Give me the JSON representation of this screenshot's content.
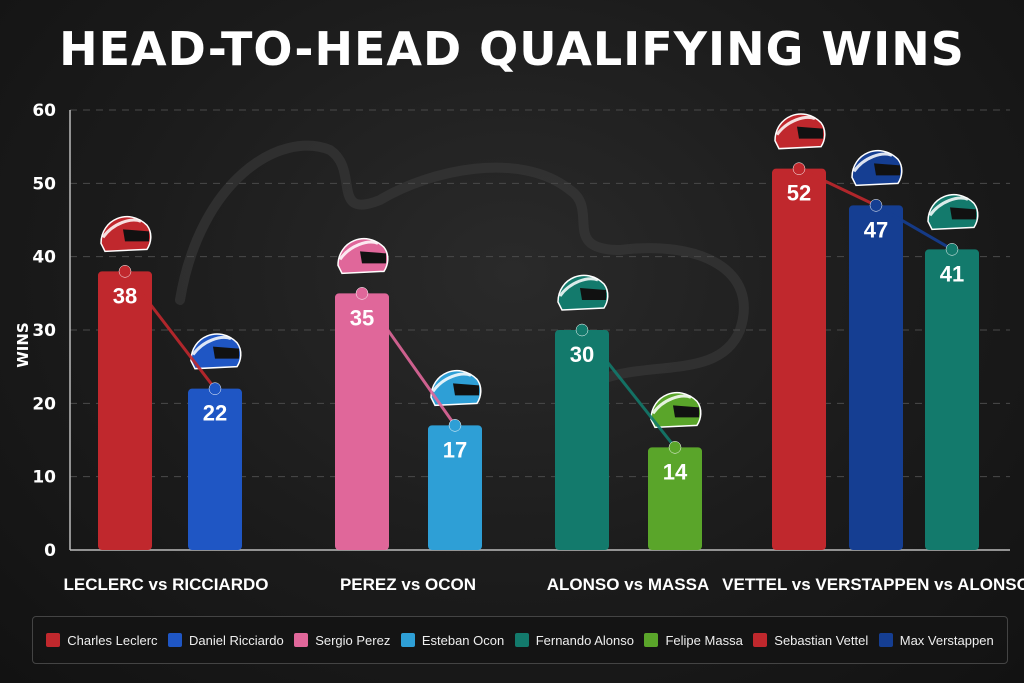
{
  "chart_data": {
    "type": "bar",
    "title": "HEAD-TO-HEAD QUALIFYING WINS",
    "ylabel": "WINS",
    "xlabel": "",
    "ylim": [
      0,
      60
    ],
    "yticks": [
      0,
      10,
      20,
      30,
      40,
      50,
      60
    ],
    "grid": true,
    "legend_position": "bottom",
    "groups": [
      {
        "label": "LECLERC vs RICCIARDO",
        "bars": [
          {
            "driver": "Charles Leclerc",
            "value": 38
          },
          {
            "driver": "Daniel Ricciardo",
            "value": 22
          }
        ]
      },
      {
        "label": "PEREZ vs OCON",
        "bars": [
          {
            "driver": "Sergio Perez",
            "value": 35
          },
          {
            "driver": "Esteban Ocon",
            "value": 17
          }
        ]
      },
      {
        "label": "ALONSO vs MASSA",
        "bars": [
          {
            "driver": "Fernando Alonso",
            "value": 30
          },
          {
            "driver": "Felipe Massa",
            "value": 14
          }
        ]
      },
      {
        "label": "VETTEL vs VERSTAPPEN vs ALONSO",
        "bars": [
          {
            "driver": "Sebastian Vettel",
            "value": 52
          },
          {
            "driver": "Max Verstappen",
            "value": 47
          },
          {
            "driver": "Fernando Alonso",
            "value": 41
          }
        ]
      }
    ],
    "legend": [
      {
        "name": "Charles Leclerc",
        "color": "#c0282d"
      },
      {
        "name": "Daniel Ricciardo",
        "color": "#1f56c4"
      },
      {
        "name": "Sergio Perez",
        "color": "#e0679a"
      },
      {
        "name": "Esteban Ocon",
        "color": "#2e9fd6"
      },
      {
        "name": "Fernando Alonso",
        "color": "#137a6c"
      },
      {
        "name": "Felipe Massa",
        "color": "#5aa52a"
      },
      {
        "name": "Sebastian Vettel",
        "color": "#c0282d"
      },
      {
        "name": "Max Verstappen",
        "color": "#153e92"
      }
    ]
  }
}
